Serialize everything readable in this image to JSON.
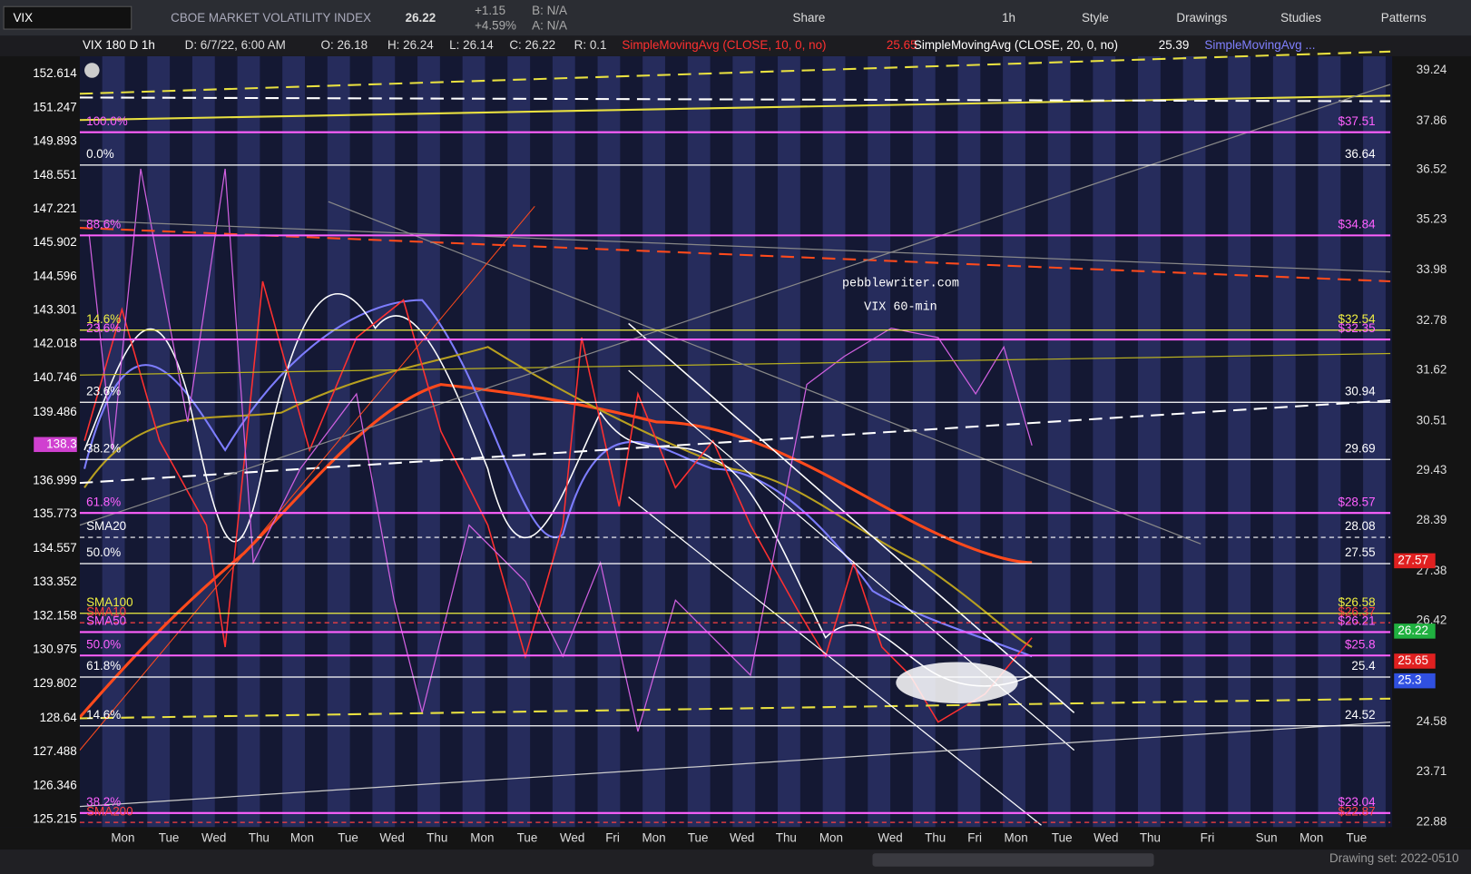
{
  "toolbar": {
    "symbol": "VIX",
    "name": "CBOE MARKET VOLATILITY INDEX",
    "last": "26.22",
    "change": "+1.15",
    "change_pct": "+4.59%",
    "bid": "B: N/A",
    "ask": "A: N/A",
    "buttons": [
      "Share",
      "1h",
      "Style",
      "Drawings",
      "Studies",
      "Patterns"
    ]
  },
  "info_bar": [
    "VIX 180 D 1h",
    "D: 6/7/22, 6:00 AM",
    "O: 26.18",
    "H: 26.24",
    "L: 26.14",
    "C: 26.22",
    "R: 0.1",
    "SimpleMovingAvg (CLOSE, 10, 0, no)",
    "25.65",
    "SimpleMovingAvg (CLOSE, 20, 0, no)",
    "25.39",
    "SimpleMovingAvg ..."
  ],
  "left_axis": [
    "152.614",
    "151.247",
    "149.893",
    "148.551",
    "147.221",
    "145.902",
    "144.596",
    "143.301",
    "142.018",
    "140.746",
    "139.486",
    "138.3",
    "136.999",
    "135.773",
    "134.557",
    "133.352",
    "132.158",
    "130.975",
    "129.802",
    "128.64",
    "127.488",
    "126.346",
    "125.215"
  ],
  "right_axis": [
    "39.24",
    "37.86",
    "36.52",
    "35.23",
    "33.98",
    "32.78",
    "31.62",
    "30.51",
    "29.43",
    "28.39",
    "27.38",
    "26.42",
    "24.58",
    "23.71",
    "22.88"
  ],
  "right_badges": [
    "27.57",
    "26.22",
    "25.65",
    "25.3"
  ],
  "levels": [
    {
      "left": "100.0%",
      "right": "$37.51"
    },
    {
      "left": "0.0%",
      "right": "36.64"
    },
    {
      "left": "88.6%",
      "right": "$34.84"
    },
    {
      "left": "14.6%",
      "right": "$32.54"
    },
    {
      "left": "23.6%",
      "right": "$32.35"
    },
    {
      "left": "23.6%",
      "right": "30.94"
    },
    {
      "left": "38.2%",
      "right": "29.69"
    },
    {
      "left": "61.8%",
      "right": "$28.57"
    },
    {
      "left": "SMA20",
      "right": "28.08"
    },
    {
      "left": "50.0%",
      "right": "27.55"
    },
    {
      "left": "SMA100",
      "right": "$26.58"
    },
    {
      "left": "SMA10",
      "right": "$26.37"
    },
    {
      "left": "SMA50",
      "right": "$26.21"
    },
    {
      "left": "50.0%",
      "right": "$25.8"
    },
    {
      "left": "61.8%",
      "right": "25.4"
    },
    {
      "left": "14.6%",
      "right": "24.52"
    },
    {
      "left": "38.2%",
      "right": "$23.04"
    },
    {
      "left": "SMA200",
      "right": "$22.87"
    }
  ],
  "x_axis": [
    "Mon",
    "Tue",
    "Wed",
    "Thu",
    "Mon",
    "Tue",
    "Wed",
    "Thu",
    "Mon",
    "Tue",
    "Wed",
    "Fri",
    "Mon",
    "Tue",
    "Wed",
    "Thu",
    "Mon",
    "Wed",
    "Thu",
    "Fri",
    "Mon",
    "Tue",
    "Wed",
    "Thu",
    "Fri",
    "Sun",
    "Mon",
    "Tue"
  ],
  "watermark": [
    "pebblewriter.com",
    "VIX 60-min"
  ],
  "status": "Drawing set: 2022-0510"
}
